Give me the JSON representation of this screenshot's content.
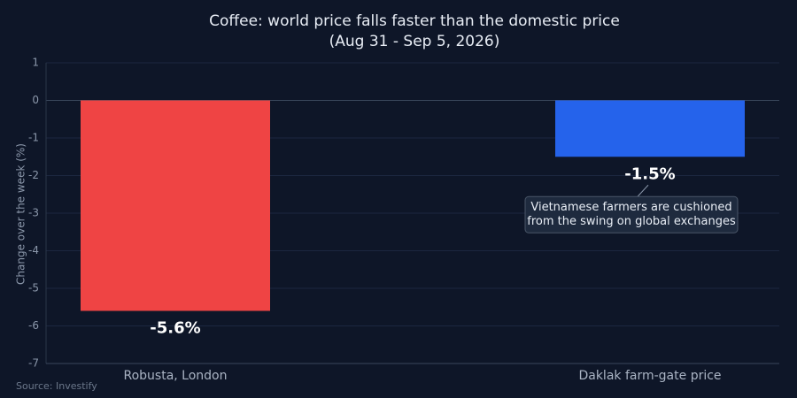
{
  "chart_data": {
    "type": "bar",
    "title": "Coffee: world price falls faster than the domestic price",
    "subtitle": "(Aug 31 - Sep 5, 2026)",
    "y_label": "Change over the week (%)",
    "categories": [
      "Robusta, London",
      "Daklak farm-gate price"
    ],
    "values": [
      -5.6,
      -1.5
    ],
    "value_labels": [
      "-5.6%",
      "-1.5%"
    ],
    "colors": [
      "#ef4444",
      "#2563eb"
    ],
    "ylim": [
      -7,
      1
    ],
    "yticks": [
      -7,
      -6,
      -5,
      -4,
      -3,
      -2,
      -1,
      0,
      1
    ],
    "grid": true,
    "annotation": {
      "lines": [
        "Vietnamese farmers are cushioned",
        "from the swing on global exchanges"
      ]
    },
    "source": "Source: Investify"
  }
}
